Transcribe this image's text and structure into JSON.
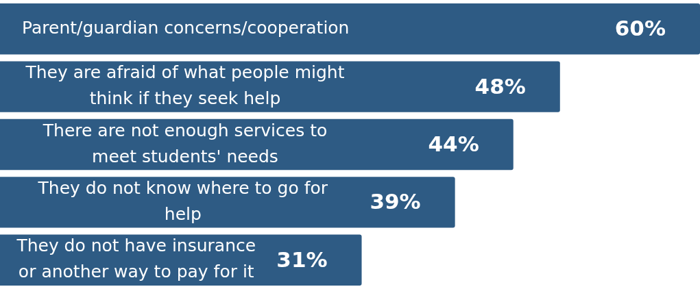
{
  "chart_data": {
    "type": "bar",
    "orientation": "horizontal",
    "categories": [
      "Parent/guardian concerns/cooperation",
      "They are afraid of what people might think if they seek help",
      "There are not enough services to meet students' needs",
      "They do not know where to go for help",
      "They do not have insurance or another way to pay for it"
    ],
    "values": [
      60,
      48,
      44,
      39,
      31
    ],
    "value_labels": [
      "60%",
      "48%",
      "44%",
      "39%",
      "31%"
    ],
    "color": "#2e5b84"
  }
}
